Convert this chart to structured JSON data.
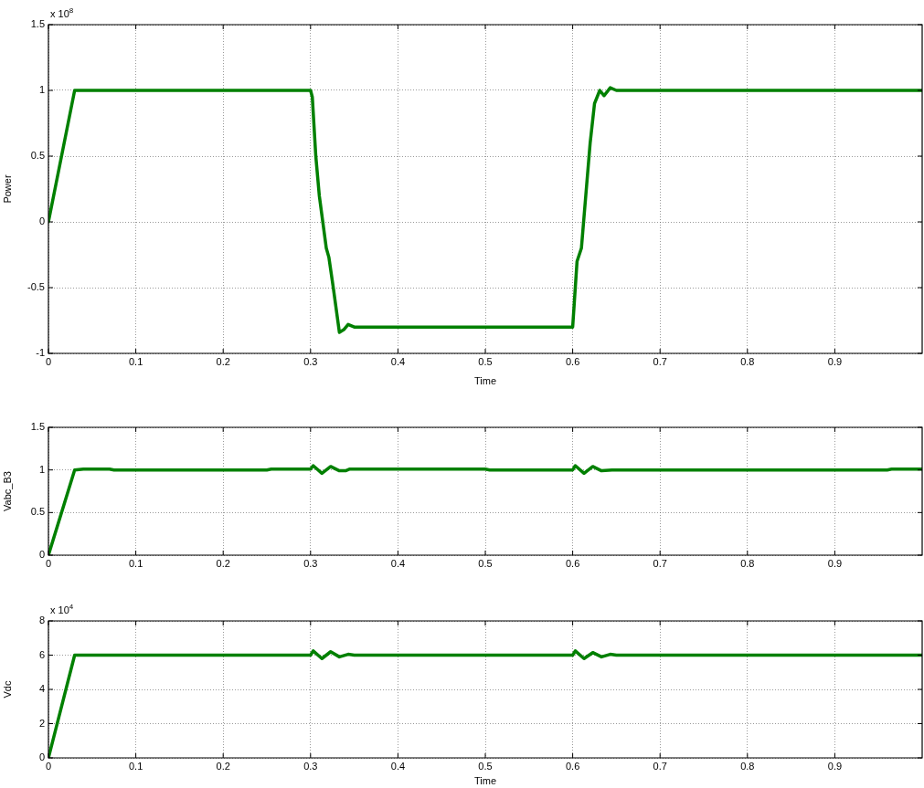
{
  "chart_data": [
    {
      "type": "line",
      "xlabel": "Time",
      "ylabel": "Power",
      "annotations": [
        "x 10$^{8}$"
      ],
      "x": [
        0,
        0.03,
        0.3,
        0.302,
        0.306,
        0.31,
        0.314,
        0.318,
        0.321,
        0.326,
        0.333,
        0.338,
        0.343,
        0.35,
        0.6,
        0.602,
        0.605,
        0.61,
        0.615,
        0.62,
        0.625,
        0.631,
        0.636,
        0.643,
        0.65,
        1
      ],
      "values": [
        0,
        1,
        1,
        0.95,
        0.5,
        0.2,
        0,
        -0.2,
        -0.27,
        -0.5,
        -0.84,
        -0.82,
        -0.78,
        -0.8,
        -0.8,
        -0.6,
        -0.3,
        -0.2,
        0.2,
        0.6,
        0.9,
        1,
        0.96,
        1.02,
        1,
        1
      ],
      "color": "#008000",
      "marker": "none",
      "grid": true,
      "xlim": [
        0,
        1
      ],
      "xticks": [
        0,
        0.1,
        0.2,
        0.3,
        0.4,
        0.5,
        0.6,
        0.7,
        0.8,
        0.9
      ],
      "ylim": [
        -1,
        1.5
      ],
      "yticks": [
        -1,
        -0.5,
        0,
        0.5,
        1,
        1.5
      ]
    },
    {
      "type": "line",
      "ylabel": "Vabc_B3",
      "x": [
        0,
        0.03,
        0.04,
        0.07,
        0.075,
        0.25,
        0.255,
        0.3,
        0.303,
        0.313,
        0.323,
        0.333,
        0.34,
        0.345,
        0.5,
        0.505,
        0.6,
        0.603,
        0.613,
        0.623,
        0.633,
        0.645,
        0.96,
        0.965,
        1
      ],
      "values": [
        0,
        1,
        1.01,
        1.01,
        1,
        1,
        1.01,
        1.01,
        1.05,
        0.96,
        1.04,
        0.99,
        0.99,
        1.01,
        1.01,
        1,
        1,
        1.05,
        0.96,
        1.04,
        0.99,
        1,
        1,
        1.01,
        1.01
      ],
      "color": "#008000",
      "marker": "none",
      "grid": true,
      "xlim": [
        0,
        1
      ],
      "xticks": [
        0,
        0.1,
        0.2,
        0.3,
        0.4,
        0.5,
        0.6,
        0.7,
        0.8,
        0.9
      ],
      "ylim": [
        0,
        1.5
      ],
      "yticks": [
        0,
        0.5,
        1,
        1.5
      ]
    },
    {
      "type": "line",
      "xlabel": "Time",
      "ylabel": "Vdc",
      "annotations": [
        "x 10$^{4}$"
      ],
      "x": [
        0,
        0.03,
        0.3,
        0.303,
        0.313,
        0.323,
        0.333,
        0.343,
        0.35,
        0.6,
        0.603,
        0.613,
        0.623,
        0.633,
        0.643,
        0.65,
        1
      ],
      "values": [
        0,
        6,
        6,
        6.25,
        5.8,
        6.2,
        5.9,
        6.05,
        6,
        6,
        6.25,
        5.8,
        6.15,
        5.9,
        6.05,
        6,
        6
      ],
      "color": "#008000",
      "marker": "none",
      "grid": true,
      "xlim": [
        0,
        1
      ],
      "xticks": [
        0,
        0.1,
        0.2,
        0.3,
        0.4,
        0.5,
        0.6,
        0.7,
        0.8,
        0.9
      ],
      "ylim": [
        0,
        8
      ],
      "yticks": [
        0,
        2,
        4,
        6,
        8
      ]
    }
  ]
}
